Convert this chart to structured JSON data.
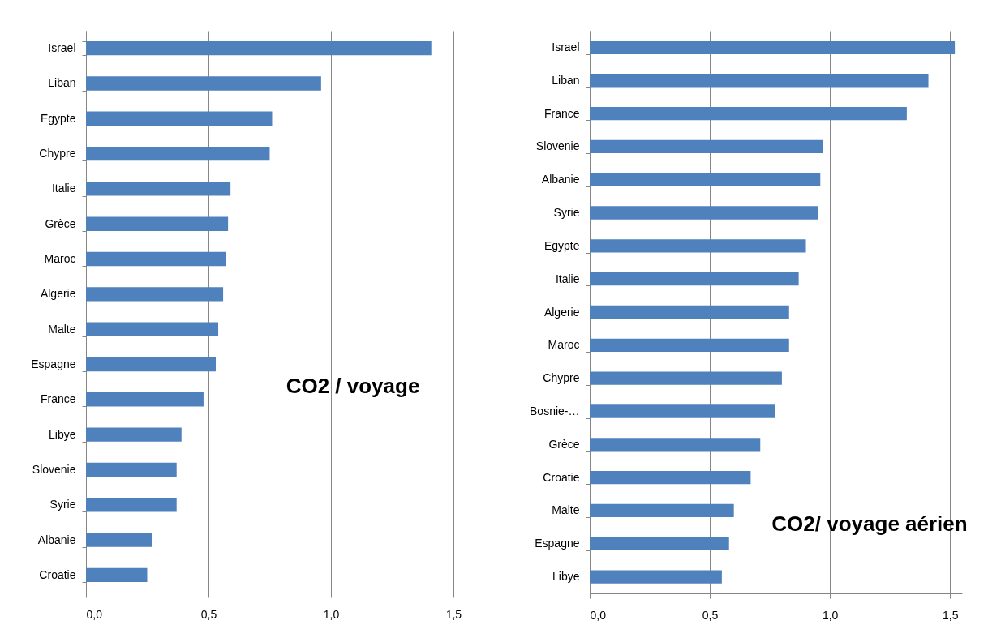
{
  "chart_data": [
    {
      "type": "bar",
      "orientation": "horizontal",
      "title": "CO2 / voyage",
      "categories": [
        "Israel",
        "Liban",
        "Egypte",
        "Chypre",
        "Italie",
        "Grèce",
        "Maroc",
        "Algerie",
        "Malte",
        "Espagne",
        "France",
        "Libye",
        "Slovenie",
        "Syrie",
        "Albanie",
        "Croatie"
      ],
      "values": [
        1.41,
        0.96,
        0.76,
        0.75,
        0.59,
        0.58,
        0.57,
        0.56,
        0.54,
        0.53,
        0.48,
        0.39,
        0.37,
        0.37,
        0.27,
        0.25
      ],
      "color": "#4f81bd",
      "xlim": [
        0,
        1.55
      ],
      "xticks": [
        {
          "value": 0,
          "label": "0,0"
        },
        {
          "value": 0.5,
          "label": "0,5"
        },
        {
          "value": 1,
          "label": "1,0"
        },
        {
          "value": 1.5,
          "label": "1,5"
        }
      ],
      "grid": "x"
    },
    {
      "type": "bar",
      "orientation": "horizontal",
      "title": "CO2/ voyage aérien",
      "categories": [
        "Israel",
        "Liban",
        "France",
        "Slovenie",
        "Albanie",
        "Syrie",
        "Egypte",
        "Italie",
        "Algerie",
        "Maroc",
        "Chypre",
        "Bosnie-…",
        "Grèce",
        "Croatie",
        "Malte",
        "Espagne",
        "Libye"
      ],
      "values": [
        1.52,
        1.41,
        1.32,
        0.97,
        0.96,
        0.95,
        0.9,
        0.87,
        0.83,
        0.83,
        0.8,
        0.77,
        0.71,
        0.67,
        0.6,
        0.58,
        0.55
      ],
      "color": "#4f81bd",
      "xlim": [
        0,
        1.55
      ],
      "xticks": [
        {
          "value": 0,
          "label": "0,0"
        },
        {
          "value": 0.5,
          "label": "0,5"
        },
        {
          "value": 1,
          "label": "1,0"
        },
        {
          "value": 1.5,
          "label": "1,5"
        }
      ],
      "grid": "x"
    }
  ]
}
